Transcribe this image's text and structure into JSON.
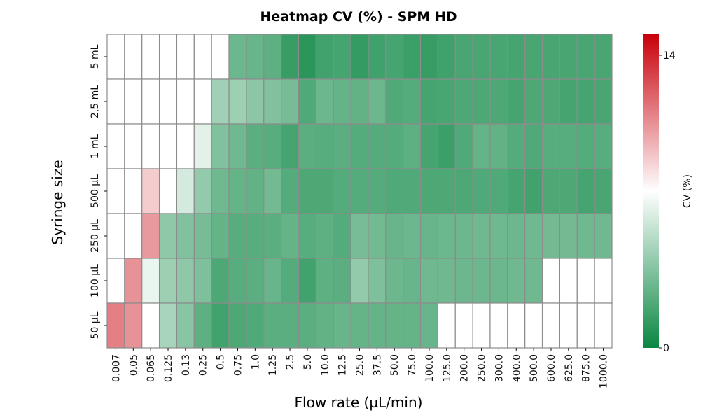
{
  "chart_data": {
    "type": "heatmap",
    "title": "Heatmap CV (%) - SPM HD",
    "xlabel": "Flow rate (µL/min)",
    "ylabel": "Syringe size",
    "colorbar_label": "CV (%)",
    "colorbar_ticks": [
      "0",
      "14"
    ],
    "value_range": [
      0,
      14
    ],
    "colors": {
      "low": "#0a8742",
      "mid": "#ffffff",
      "high": "#c8000a",
      "grid": "#8c8c8c"
    },
    "x_categories": [
      "0.007",
      "0.05",
      "0.065",
      "0.125",
      "0.13",
      "0.25",
      "0.5",
      "0.75",
      "1.0",
      "1.25",
      "2.5",
      "5.0",
      "10.0",
      "12.5",
      "25.0",
      "37.5",
      "50.0",
      "75.0",
      "100.0",
      "125.0",
      "200.0",
      "250.0",
      "300.0",
      "400.0",
      "500.0",
      "600.0",
      "625.0",
      "875.0",
      "1000.0"
    ],
    "y_categories": [
      "5 mL",
      "2,5 mL",
      "1 mL",
      "500 µL",
      "250 µL",
      "100 µL",
      "50 µL"
    ],
    "values": [
      [
        null,
        null,
        null,
        null,
        null,
        null,
        null,
        2.8,
        2.7,
        2.4,
        1.3,
        0.9,
        1.6,
        1.7,
        1.2,
        1.5,
        1.7,
        1.4,
        1.3,
        1.5,
        1.8,
        1.8,
        1.8,
        1.7,
        1.8,
        1.8,
        1.8,
        1.8,
        1.8
      ],
      [
        null,
        null,
        null,
        null,
        null,
        null,
        4.3,
        4.2,
        3.7,
        3.4,
        3.1,
        2.0,
        2.8,
        2.6,
        2.5,
        2.8,
        2.0,
        2.1,
        1.7,
        1.8,
        1.9,
        1.9,
        1.9,
        1.7,
        1.9,
        1.9,
        1.7,
        1.7,
        1.8
      ],
      [
        null,
        null,
        null,
        null,
        null,
        6.2,
        3.4,
        2.9,
        2.3,
        2.2,
        1.7,
        2.3,
        2.2,
        2.3,
        2.1,
        2.1,
        2.1,
        2.4,
        1.7,
        1.4,
        2.0,
        2.6,
        2.5,
        2.1,
        2.0,
        2.2,
        2.2,
        2.1,
        2.2
      ],
      [
        null,
        null,
        8.4,
        null,
        5.8,
        3.9,
        2.9,
        2.6,
        2.5,
        3.0,
        2.1,
        1.9,
        1.9,
        2.1,
        2.1,
        2.1,
        2.0,
        2.0,
        1.9,
        1.9,
        1.9,
        2.0,
        2.0,
        1.7,
        1.6,
        1.9,
        1.9,
        1.7,
        1.8
      ],
      [
        null,
        null,
        9.8,
        3.8,
        3.4,
        3.1,
        2.6,
        2.2,
        2.2,
        2.3,
        2.6,
        2.2,
        2.4,
        2.1,
        3.1,
        3.0,
        2.7,
        2.8,
        2.7,
        2.8,
        2.8,
        2.9,
        2.9,
        2.8,
        2.9,
        3.0,
        3.0,
        2.9,
        2.9
      ],
      [
        null,
        10.0,
        6.4,
        4.2,
        3.8,
        3.3,
        1.9,
        2.2,
        2.3,
        2.7,
        2.1,
        1.6,
        2.4,
        2.3,
        3.9,
        3.3,
        2.8,
        2.7,
        2.9,
        2.9,
        2.8,
        2.8,
        2.8,
        2.9,
        2.9,
        null,
        null,
        null,
        null
      ],
      [
        10.5,
        10.0,
        7.0,
        4.5,
        3.6,
        2.4,
        1.6,
        1.9,
        2.0,
        2.3,
        2.3,
        2.3,
        2.5,
        2.7,
        2.6,
        2.6,
        2.6,
        2.6,
        2.7,
        null,
        null,
        null,
        null,
        null,
        null,
        null,
        null,
        null,
        null
      ]
    ]
  }
}
